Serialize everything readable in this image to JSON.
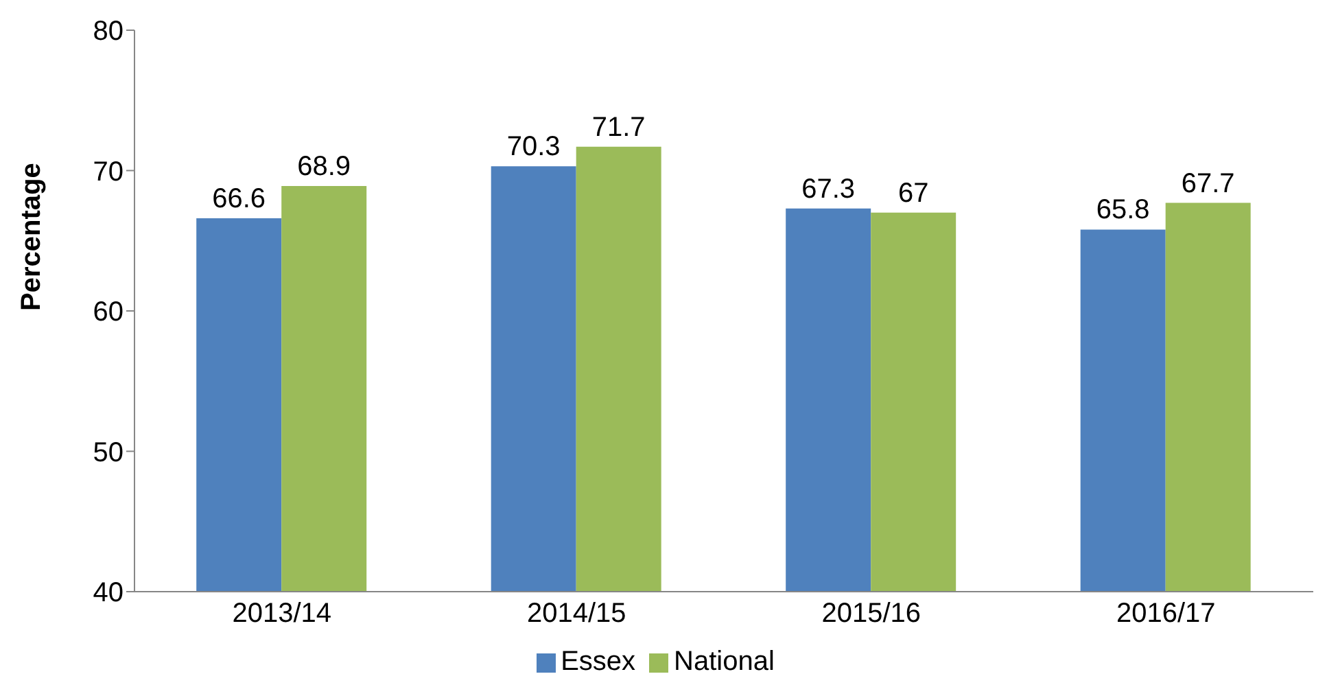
{
  "chart_data": {
    "type": "bar",
    "ylabel": "Percentage",
    "categories": [
      "2013/14",
      "2014/15",
      "2015/16",
      "2016/17"
    ],
    "series": [
      {
        "name": "Essex",
        "color": "#4f81bd",
        "values": [
          66.6,
          70.3,
          67.3,
          65.8
        ]
      },
      {
        "name": "National",
        "color": "#9bbb59",
        "values": [
          68.9,
          71.7,
          67,
          67.7
        ]
      }
    ],
    "ylim": [
      40,
      80
    ],
    "yticks": [
      40,
      50,
      60,
      70,
      80
    ],
    "grid": false,
    "legend": "bottom",
    "data_labels": true
  }
}
